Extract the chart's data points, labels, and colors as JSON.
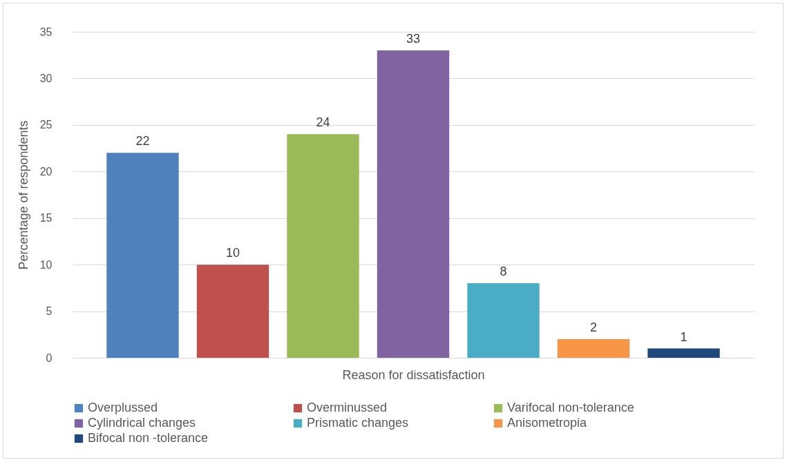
{
  "chart_data": {
    "type": "bar",
    "xlabel": "Reason for dissatisfaction",
    "ylabel": "Percentage of respondents",
    "categories": [
      null
    ],
    "series": [
      {
        "name": "Overplussed",
        "color": "#4f81bd",
        "values": [
          22
        ]
      },
      {
        "name": "Overminussed",
        "color": "#c0504d",
        "values": [
          10
        ]
      },
      {
        "name": "Varifocal non-tolerance",
        "color": "#9bbb59",
        "values": [
          24
        ]
      },
      {
        "name": "Cylindrical changes",
        "color": "#8064a2",
        "values": [
          33
        ]
      },
      {
        "name": "Prismatic changes",
        "color": "#4bacc6",
        "values": [
          8
        ]
      },
      {
        "name": "Anisometropia",
        "color": "#f79646",
        "values": [
          2
        ]
      },
      {
        "name": "Bifocal non -tolerance",
        "color": "#1f497d",
        "values": [
          1
        ]
      }
    ],
    "ylim": [
      0,
      35
    ],
    "yticks": [
      0,
      5,
      10,
      15,
      20,
      25,
      30,
      35
    ],
    "grid": "y",
    "data_labels": true,
    "legend": "bottom"
  }
}
